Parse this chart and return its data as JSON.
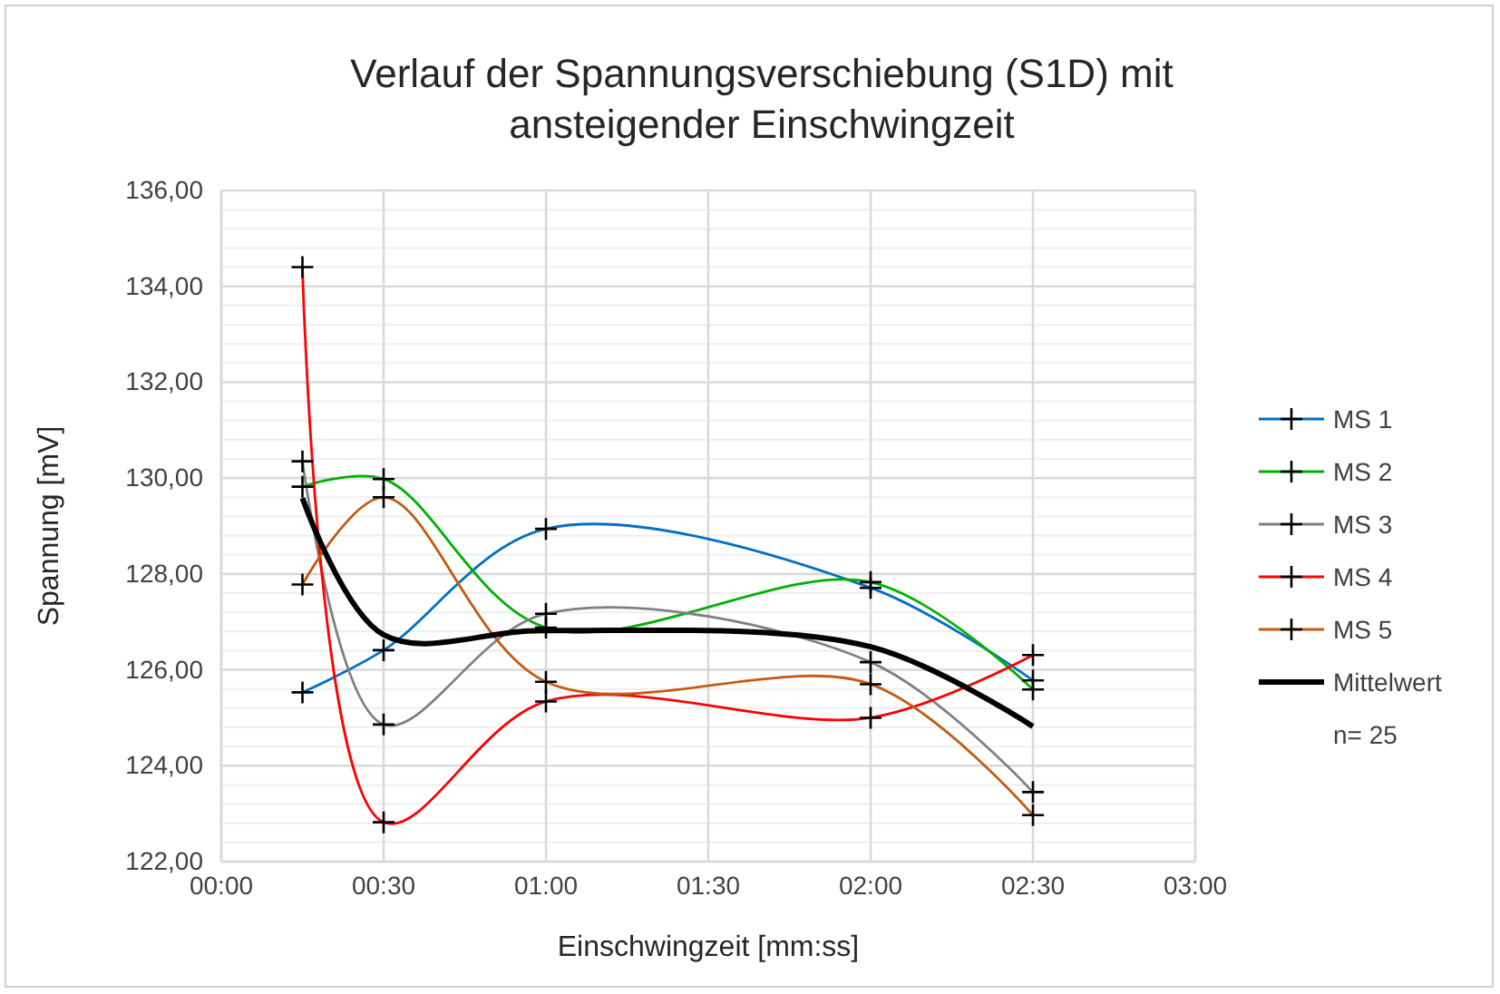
{
  "chart_data": {
    "type": "line",
    "title": "Verlauf der Spannungsverschiebung (S1D) mit\nansteigender Einschwingzeit",
    "xlabel": "Einschwingzeit [mm:ss]",
    "ylabel": "Spannung [mV]",
    "x": [
      15,
      30,
      60,
      120,
      150
    ],
    "xlim": [
      0,
      180
    ],
    "xticks": [
      {
        "value": 0,
        "label": "00:00"
      },
      {
        "value": 30,
        "label": "00:30"
      },
      {
        "value": 60,
        "label": "01:00"
      },
      {
        "value": 90,
        "label": "01:30"
      },
      {
        "value": 120,
        "label": "02:00"
      },
      {
        "value": 150,
        "label": "02:30"
      },
      {
        "value": 180,
        "label": "03:00"
      }
    ],
    "ylim": [
      122,
      136
    ],
    "yticks": [
      {
        "value": 122,
        "label": "122,00"
      },
      {
        "value": 124,
        "label": "124,00"
      },
      {
        "value": 126,
        "label": "126,00"
      },
      {
        "value": 128,
        "label": "128,00"
      },
      {
        "value": 130,
        "label": "130,00"
      },
      {
        "value": 132,
        "label": "132,00"
      },
      {
        "value": 134,
        "label": "134,00"
      },
      {
        "value": 136,
        "label": "136,00"
      }
    ],
    "series": [
      {
        "name": "MS 1",
        "color": "#0070c0",
        "values": [
          125.53,
          126.41,
          128.94,
          127.71,
          125.78
        ]
      },
      {
        "name": "MS 2",
        "color": "#00b000",
        "values": [
          129.82,
          129.98,
          126.88,
          127.83,
          125.59
        ]
      },
      {
        "name": "MS 3",
        "color": "#808080",
        "values": [
          130.35,
          124.86,
          127.17,
          126.16,
          123.45
        ]
      },
      {
        "name": "MS 4",
        "color": "#ff0000",
        "values": [
          134.4,
          122.82,
          125.34,
          125.0,
          126.31
        ]
      },
      {
        "name": "MS 5",
        "color": "#c55a11",
        "values": [
          127.78,
          129.6,
          125.75,
          125.7,
          122.97
        ]
      },
      {
        "name": "Mittelwert",
        "color": "#000000",
        "marker": "none",
        "values": [
          129.58,
          126.73,
          126.82,
          126.48,
          124.82
        ]
      }
    ],
    "marker": "cross",
    "line_style": "solid",
    "grid": true,
    "legend": "right",
    "annotations": [
      "n= 25"
    ]
  }
}
